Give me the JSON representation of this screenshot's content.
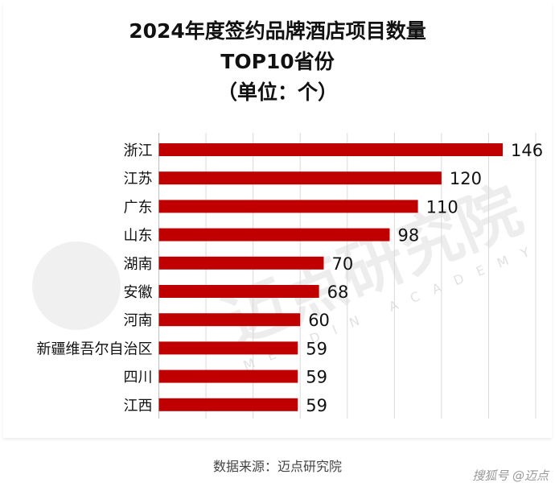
{
  "chart_data": {
    "type": "bar",
    "orientation": "horizontal",
    "title": [
      "2024年度签约品牌酒店项目数量",
      "TOP10省份",
      "（单位：个）"
    ],
    "categories": [
      "浙江",
      "江苏",
      "广东",
      "山东",
      "湖南",
      "安徽",
      "河南",
      "新疆维吾尔自治区",
      "四川",
      "江西"
    ],
    "values": [
      146,
      120,
      110,
      98,
      70,
      68,
      60,
      59,
      59,
      59
    ],
    "xlim": [
      0,
      160
    ],
    "grid_step": 20,
    "grid": true,
    "bar_color": "#c00000",
    "data_labels": true
  },
  "source": "数据来源：迈点研究院",
  "watermark": {
    "text": "迈点研究院",
    "subtext": "MEADIN ACADEMY"
  },
  "credit": "搜狐号 @迈点"
}
